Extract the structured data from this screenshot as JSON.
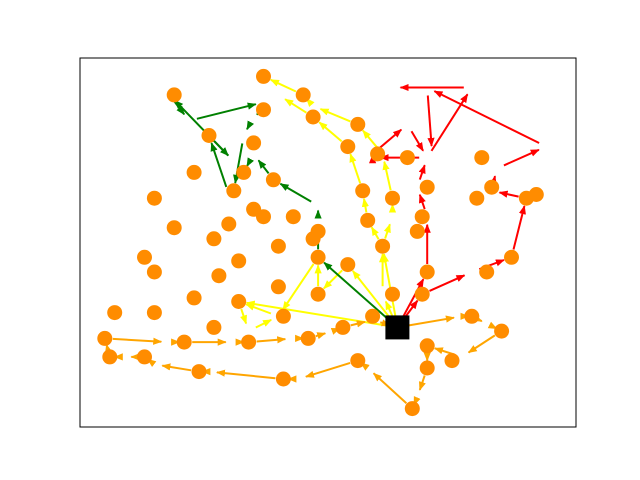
{
  "chart_data": {
    "type": "scatter",
    "title": "",
    "xlabel": "",
    "ylabel": "",
    "xlim": [
      0,
      1
    ],
    "ylim": [
      0,
      1
    ],
    "axis_ticks": false,
    "grid": false,
    "legend": false,
    "depot": [
      0.64,
      0.27
    ],
    "marker_color": "#ff8c00",
    "depot_color": "#000000",
    "nodes": [
      [
        0.37,
        0.95
      ],
      [
        0.45,
        0.9
      ],
      [
        0.19,
        0.9
      ],
      [
        0.37,
        0.86
      ],
      [
        0.47,
        0.84
      ],
      [
        0.56,
        0.82
      ],
      [
        0.26,
        0.79
      ],
      [
        0.35,
        0.77
      ],
      [
        0.54,
        0.76
      ],
      [
        0.6,
        0.74
      ],
      [
        0.81,
        0.73
      ],
      [
        0.66,
        0.73
      ],
      [
        0.23,
        0.69
      ],
      [
        0.33,
        0.69
      ],
      [
        0.39,
        0.67
      ],
      [
        0.7,
        0.65
      ],
      [
        0.83,
        0.65
      ],
      [
        0.92,
        0.63
      ],
      [
        0.31,
        0.64
      ],
      [
        0.57,
        0.64
      ],
      [
        0.15,
        0.62
      ],
      [
        0.63,
        0.62
      ],
      [
        0.8,
        0.62
      ],
      [
        0.9,
        0.62
      ],
      [
        0.35,
        0.59
      ],
      [
        0.43,
        0.57
      ],
      [
        0.69,
        0.57
      ],
      [
        0.3,
        0.55
      ],
      [
        0.37,
        0.57
      ],
      [
        0.58,
        0.56
      ],
      [
        0.19,
        0.54
      ],
      [
        0.48,
        0.53
      ],
      [
        0.68,
        0.53
      ],
      [
        0.27,
        0.51
      ],
      [
        0.47,
        0.51
      ],
      [
        0.4,
        0.49
      ],
      [
        0.61,
        0.49
      ],
      [
        0.13,
        0.46
      ],
      [
        0.32,
        0.45
      ],
      [
        0.48,
        0.46
      ],
      [
        0.54,
        0.44
      ],
      [
        0.87,
        0.46
      ],
      [
        0.15,
        0.42
      ],
      [
        0.28,
        0.41
      ],
      [
        0.7,
        0.42
      ],
      [
        0.82,
        0.42
      ],
      [
        0.4,
        0.38
      ],
      [
        0.63,
        0.36
      ],
      [
        0.69,
        0.36
      ],
      [
        0.48,
        0.36
      ],
      [
        0.23,
        0.35
      ],
      [
        0.32,
        0.34
      ],
      [
        0.07,
        0.31
      ],
      [
        0.15,
        0.31
      ],
      [
        0.41,
        0.3
      ],
      [
        0.59,
        0.3
      ],
      [
        0.79,
        0.3
      ],
      [
        0.27,
        0.27
      ],
      [
        0.53,
        0.27
      ],
      [
        0.85,
        0.26
      ],
      [
        0.05,
        0.24
      ],
      [
        0.21,
        0.23
      ],
      [
        0.34,
        0.23
      ],
      [
        0.46,
        0.24
      ],
      [
        0.7,
        0.22
      ],
      [
        0.06,
        0.19
      ],
      [
        0.13,
        0.19
      ],
      [
        0.75,
        0.18
      ],
      [
        0.56,
        0.18
      ],
      [
        0.7,
        0.16
      ],
      [
        0.24,
        0.15
      ],
      [
        0.41,
        0.13
      ],
      [
        0.67,
        0.05
      ]
    ],
    "routes": [
      {
        "color": "#ff0000",
        "points": [
          [
            0.64,
            0.27
          ],
          [
            0.7,
            0.42
          ],
          [
            0.7,
            0.57
          ],
          [
            0.68,
            0.65
          ],
          [
            0.7,
            0.73
          ],
          [
            0.59,
            0.73
          ],
          [
            0.59,
            0.74
          ],
          [
            0.66,
            0.82
          ],
          [
            0.7,
            0.73
          ],
          [
            0.79,
            0.92
          ],
          [
            0.63,
            0.92
          ]
        ]
      },
      {
        "color": "#ff0000",
        "points": [
          [
            0.64,
            0.27
          ],
          [
            0.69,
            0.36
          ],
          [
            0.79,
            0.42
          ],
          [
            0.87,
            0.46
          ],
          [
            0.9,
            0.62
          ],
          [
            0.83,
            0.64
          ],
          [
            0.84,
            0.7
          ],
          [
            0.94,
            0.76
          ],
          [
            0.7,
            0.92
          ],
          [
            0.71,
            0.74
          ]
        ]
      },
      {
        "color": "#ffff00",
        "points": [
          [
            0.64,
            0.27
          ],
          [
            0.61,
            0.36
          ],
          [
            0.61,
            0.49
          ],
          [
            0.63,
            0.57
          ],
          [
            0.63,
            0.62
          ],
          [
            0.61,
            0.74
          ],
          [
            0.56,
            0.82
          ],
          [
            0.47,
            0.87
          ],
          [
            0.45,
            0.9
          ],
          [
            0.37,
            0.95
          ]
        ]
      },
      {
        "color": "#ffff00",
        "points": [
          [
            0.64,
            0.27
          ],
          [
            0.61,
            0.49
          ],
          [
            0.58,
            0.56
          ],
          [
            0.57,
            0.64
          ],
          [
            0.54,
            0.76
          ],
          [
            0.47,
            0.84
          ],
          [
            0.4,
            0.9
          ]
        ]
      },
      {
        "color": "#ffff00",
        "points": [
          [
            0.64,
            0.27
          ],
          [
            0.54,
            0.44
          ],
          [
            0.48,
            0.36
          ],
          [
            0.48,
            0.46
          ],
          [
            0.4,
            0.3
          ],
          [
            0.32,
            0.34
          ]
        ]
      },
      {
        "color": "#ffff00",
        "points": [
          [
            0.64,
            0.27
          ],
          [
            0.32,
            0.34
          ],
          [
            0.34,
            0.26
          ],
          [
            0.4,
            0.3
          ]
        ]
      },
      {
        "color": "#008000",
        "points": [
          [
            0.64,
            0.27
          ],
          [
            0.48,
            0.46
          ],
          [
            0.48,
            0.56
          ],
          [
            0.48,
            0.6
          ],
          [
            0.39,
            0.67
          ],
          [
            0.35,
            0.74
          ],
          [
            0.33,
            0.69
          ]
        ]
      },
      {
        "color": "#008000",
        "points": [
          [
            0.37,
            0.86
          ],
          [
            0.35,
            0.84
          ],
          [
            0.33,
            0.79
          ],
          [
            0.31,
            0.64
          ],
          [
            0.3,
            0.63
          ],
          [
            0.26,
            0.79
          ],
          [
            0.31,
            0.72
          ],
          [
            0.18,
            0.9
          ],
          [
            0.22,
            0.83
          ],
          [
            0.37,
            0.88
          ]
        ]
      },
      {
        "color": "#ffa500",
        "points": [
          [
            0.64,
            0.27
          ],
          [
            0.77,
            0.3
          ],
          [
            0.79,
            0.3
          ],
          [
            0.82,
            0.28
          ],
          [
            0.85,
            0.26
          ],
          [
            0.77,
            0.19
          ],
          [
            0.77,
            0.19
          ],
          [
            0.7,
            0.22
          ],
          [
            0.7,
            0.16
          ],
          [
            0.68,
            0.08
          ],
          [
            0.67,
            0.05
          ],
          [
            0.58,
            0.16
          ],
          [
            0.56,
            0.18
          ],
          [
            0.44,
            0.13
          ],
          [
            0.41,
            0.13
          ],
          [
            0.26,
            0.15
          ],
          [
            0.24,
            0.15
          ],
          [
            0.15,
            0.17
          ],
          [
            0.13,
            0.19
          ],
          [
            0.09,
            0.19
          ],
          [
            0.06,
            0.19
          ],
          [
            0.05,
            0.24
          ],
          [
            0.18,
            0.23
          ],
          [
            0.21,
            0.23
          ],
          [
            0.31,
            0.23
          ],
          [
            0.34,
            0.23
          ],
          [
            0.43,
            0.24
          ],
          [
            0.46,
            0.24
          ],
          [
            0.51,
            0.26
          ],
          [
            0.53,
            0.27
          ],
          [
            0.59,
            0.29
          ],
          [
            0.64,
            0.27
          ]
        ]
      }
    ]
  }
}
